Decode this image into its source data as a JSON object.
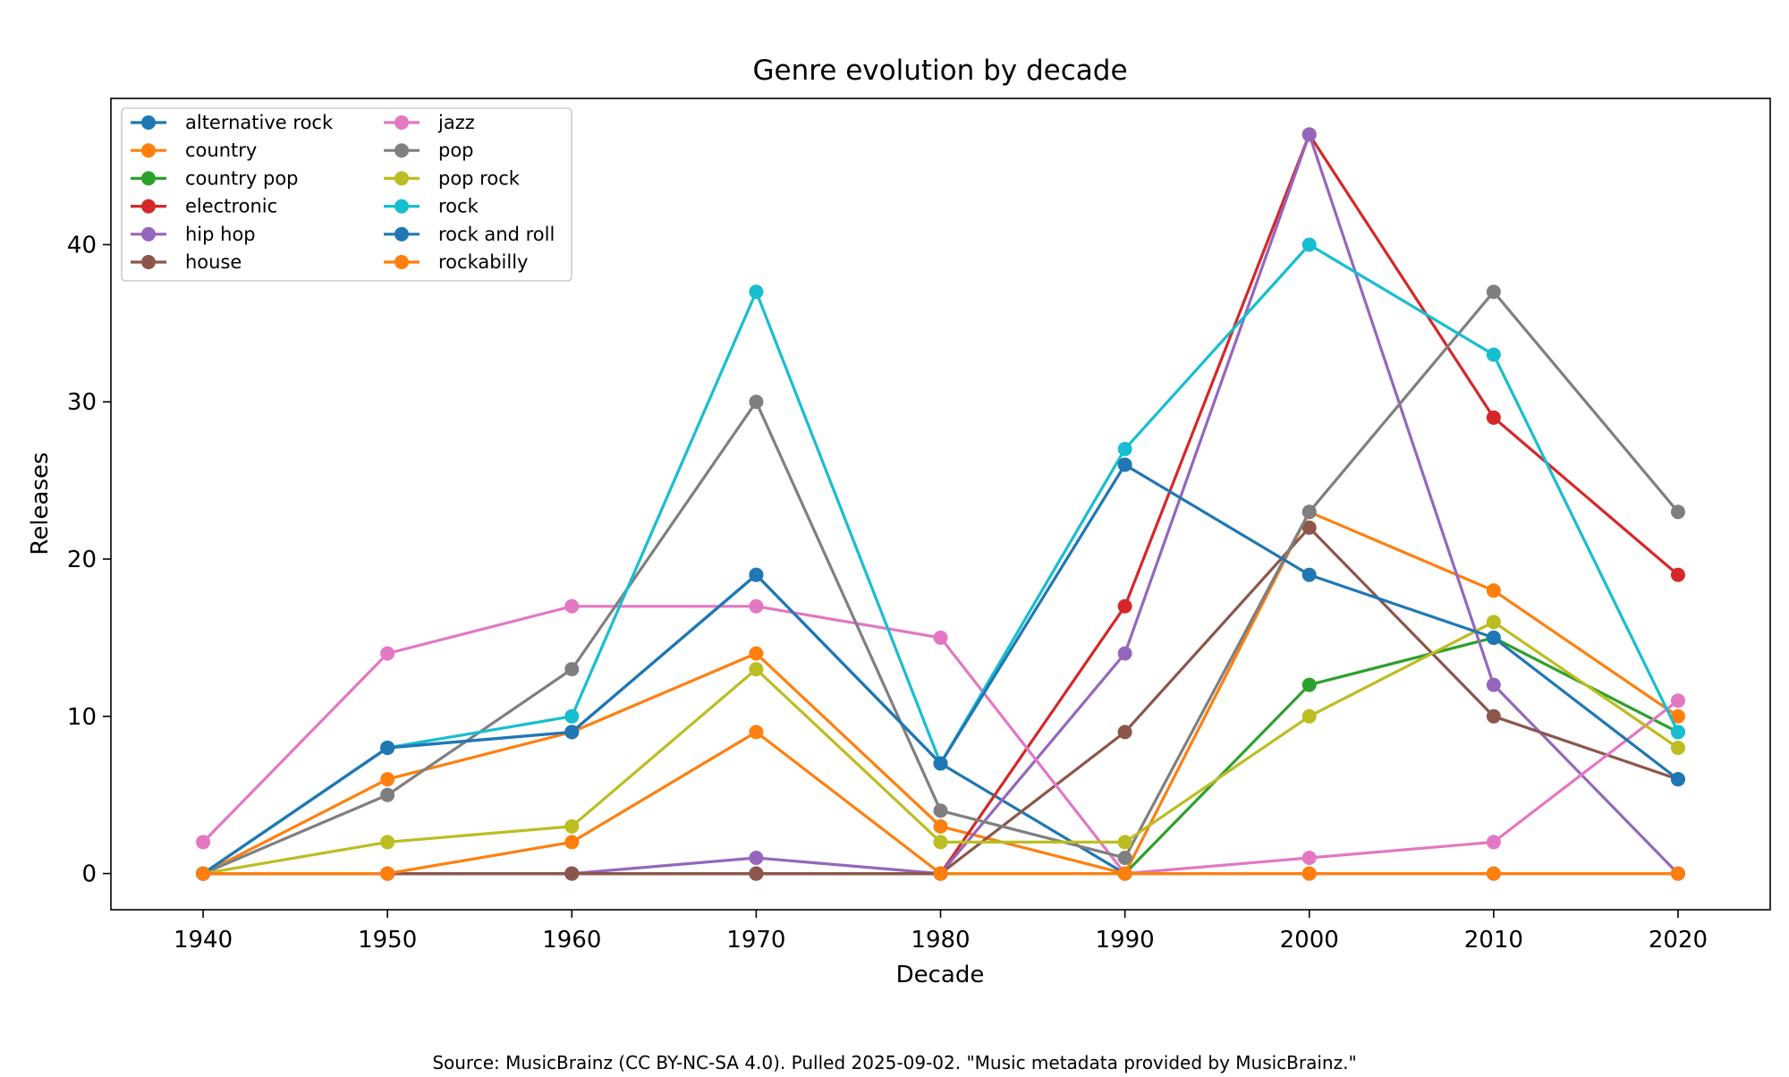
{
  "footer": {
    "source": "Source: MusicBrainz (CC BY-NC-SA 4.0). Pulled 2025-09-02. \"Music metadata provided by MusicBrainz.\""
  },
  "chart_data": {
    "type": "line",
    "title": "Genre evolution by decade",
    "xlabel": "Decade",
    "ylabel": "Releases",
    "x": [
      1940,
      1950,
      1960,
      1970,
      1980,
      1990,
      2000,
      2010,
      2020
    ],
    "xlim": [
      1935,
      2025
    ],
    "ylim": [
      -2.3,
      49.3
    ],
    "yticks": [
      0,
      10,
      20,
      30,
      40
    ],
    "grid": false,
    "legend": {
      "placement": "top-left",
      "columns": 2
    },
    "series": [
      {
        "name": "alternative rock",
        "color": "#1f77b4",
        "values": [
          0,
          8,
          9,
          19,
          7,
          0,
          0,
          0,
          0
        ]
      },
      {
        "name": "country",
        "color": "#ff7f0e",
        "values": [
          0,
          6,
          9,
          14,
          3,
          0,
          23,
          18,
          10
        ]
      },
      {
        "name": "country pop",
        "color": "#2ca02c",
        "values": [
          0,
          0,
          0,
          0,
          0,
          0,
          12,
          15,
          9
        ]
      },
      {
        "name": "electronic",
        "color": "#d62728",
        "values": [
          0,
          0,
          0,
          0,
          0,
          17,
          47,
          29,
          19
        ]
      },
      {
        "name": "hip hop",
        "color": "#9467bd",
        "values": [
          0,
          0,
          0,
          1,
          0,
          14,
          47,
          12,
          0
        ]
      },
      {
        "name": "house",
        "color": "#8c564b",
        "values": [
          0,
          0,
          0,
          0,
          0,
          9,
          22,
          10,
          6
        ]
      },
      {
        "name": "jazz",
        "color": "#e377c2",
        "values": [
          2,
          14,
          17,
          17,
          15,
          0,
          1,
          2,
          11
        ]
      },
      {
        "name": "pop",
        "color": "#7f7f7f",
        "values": [
          0,
          5,
          13,
          30,
          4,
          1,
          23,
          37,
          23
        ]
      },
      {
        "name": "pop rock",
        "color": "#bcbd22",
        "values": [
          0,
          2,
          3,
          13,
          2,
          2,
          10,
          16,
          8
        ]
      },
      {
        "name": "rock",
        "color": "#17becf",
        "values": [
          0,
          8,
          10,
          37,
          7,
          27,
          40,
          33,
          9
        ]
      },
      {
        "name": "rock and roll",
        "color": "#1f77b4",
        "values": [
          0,
          8,
          9,
          19,
          7,
          26,
          19,
          15,
          6
        ]
      },
      {
        "name": "rockabilly",
        "color": "#ff7f0e",
        "values": [
          0,
          0,
          2,
          9,
          0,
          0,
          0,
          0,
          0
        ]
      }
    ]
  }
}
